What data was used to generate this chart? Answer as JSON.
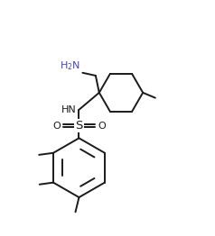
{
  "bg_color": "#ffffff",
  "line_color": "#1a1a1a",
  "amine_color": "#4444cc",
  "line_width": 1.4,
  "figsize": [
    2.38,
    2.62
  ],
  "dpi": 100,
  "xlim": [
    -0.5,
    8.5
  ],
  "ylim": [
    -0.3,
    9.5
  ]
}
